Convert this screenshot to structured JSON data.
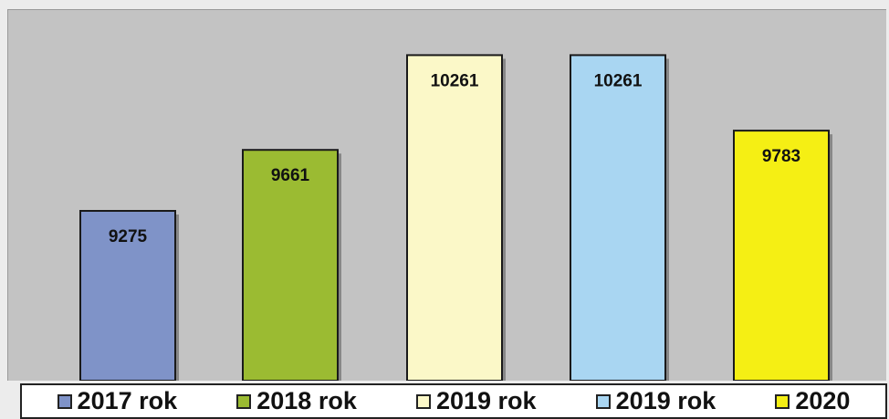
{
  "chart_data": {
    "type": "bar",
    "categories": [
      "2017 rok",
      "2018 rok",
      "2019 rok",
      "2019 rok",
      "2020"
    ],
    "values": [
      9275,
      9661,
      10261,
      10261,
      9783
    ],
    "colors": [
      "#7f93c8",
      "#9bbb32",
      "#fbf8c8",
      "#a9d6f2",
      "#f5ef14"
    ],
    "data_labels": [
      "9275",
      "9661",
      "10261",
      "10261",
      "9783"
    ],
    "title": "",
    "xlabel": "",
    "ylabel": "",
    "ylim": [
      8200,
      10350
    ],
    "grid": false,
    "legend": "bottom"
  }
}
